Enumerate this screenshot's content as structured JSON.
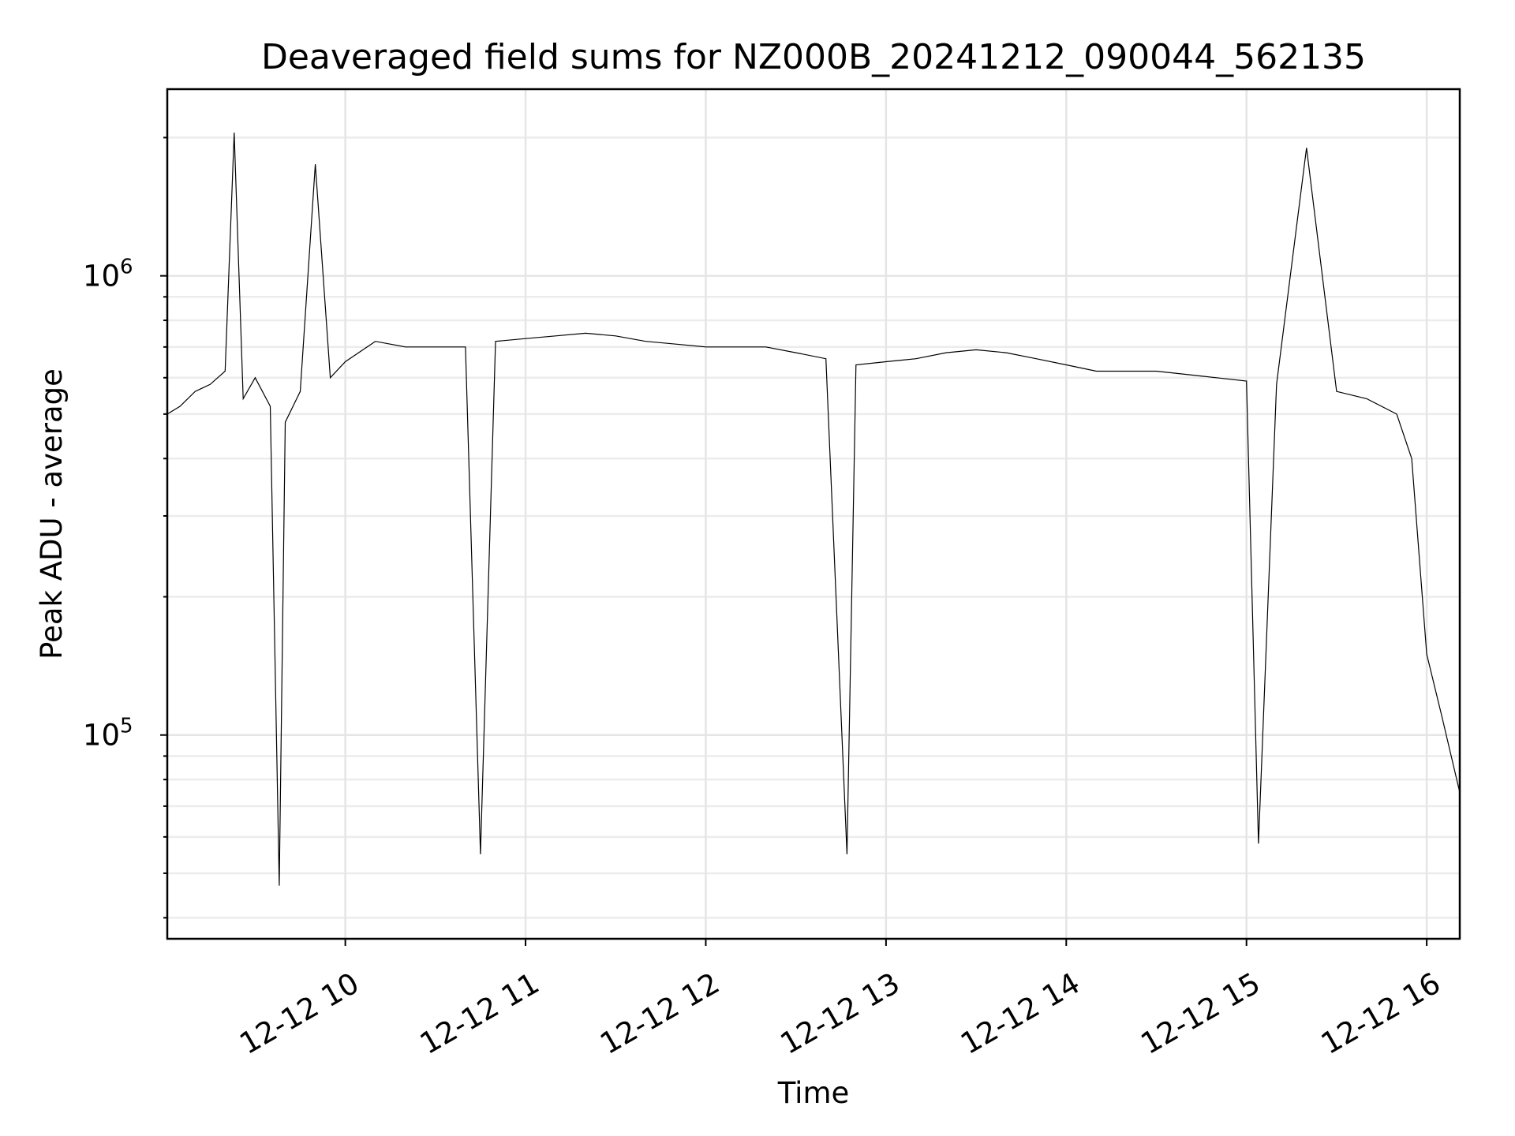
{
  "chart_data": {
    "type": "line",
    "title": "Deaveraged field sums for NZ000B_20241212_090044_562135",
    "xlabel": "Time",
    "ylabel": "Peak ADU - average",
    "yscale": "log",
    "ylim": [
      36000,
      2550000
    ],
    "y_major_ticks": [
      {
        "value": 100000,
        "base": "10",
        "exp": "5"
      },
      {
        "value": 1000000,
        "base": "10",
        "exp": "6"
      }
    ],
    "y_minor_ticks": [
      40000,
      50000,
      60000,
      70000,
      80000,
      90000,
      200000,
      300000,
      400000,
      500000,
      600000,
      700000,
      800000,
      900000,
      2000000
    ],
    "xlim": [
      "2024-12-12T09:00:44",
      "2024-12-12T16:11:00"
    ],
    "x_ticks": [
      {
        "time": "2024-12-12T10:00:00",
        "label": "12-12 10"
      },
      {
        "time": "2024-12-12T11:00:00",
        "label": "12-12 11"
      },
      {
        "time": "2024-12-12T12:00:00",
        "label": "12-12 12"
      },
      {
        "time": "2024-12-12T13:00:00",
        "label": "12-12 13"
      },
      {
        "time": "2024-12-12T14:00:00",
        "label": "12-12 14"
      },
      {
        "time": "2024-12-12T15:00:00",
        "label": "12-12 15"
      },
      {
        "time": "2024-12-12T16:00:00",
        "label": "12-12 16"
      }
    ],
    "grid": true,
    "series": [
      {
        "color": "#000000",
        "points": [
          [
            "2024-12-12T09:00:44",
            500000
          ],
          [
            "2024-12-12T09:05:00",
            520000
          ],
          [
            "2024-12-12T09:10:00",
            560000
          ],
          [
            "2024-12-12T09:15:00",
            580000
          ],
          [
            "2024-12-12T09:20:00",
            620000
          ],
          [
            "2024-12-12T09:23:00",
            2050000
          ],
          [
            "2024-12-12T09:26:00",
            540000
          ],
          [
            "2024-12-12T09:30:00",
            600000
          ],
          [
            "2024-12-12T09:35:00",
            520000
          ],
          [
            "2024-12-12T09:38:00",
            47000
          ],
          [
            "2024-12-12T09:40:00",
            480000
          ],
          [
            "2024-12-12T09:45:00",
            560000
          ],
          [
            "2024-12-12T09:50:00",
            1750000
          ],
          [
            "2024-12-12T09:55:00",
            600000
          ],
          [
            "2024-12-12T10:00:00",
            650000
          ],
          [
            "2024-12-12T10:10:00",
            720000
          ],
          [
            "2024-12-12T10:20:00",
            700000
          ],
          [
            "2024-12-12T10:30:00",
            700000
          ],
          [
            "2024-12-12T10:40:00",
            700000
          ],
          [
            "2024-12-12T10:45:00",
            55000
          ],
          [
            "2024-12-12T10:50:00",
            720000
          ],
          [
            "2024-12-12T11:00:00",
            730000
          ],
          [
            "2024-12-12T11:10:00",
            740000
          ],
          [
            "2024-12-12T11:20:00",
            750000
          ],
          [
            "2024-12-12T11:30:00",
            740000
          ],
          [
            "2024-12-12T11:40:00",
            720000
          ],
          [
            "2024-12-12T11:50:00",
            710000
          ],
          [
            "2024-12-12T12:00:00",
            700000
          ],
          [
            "2024-12-12T12:10:00",
            700000
          ],
          [
            "2024-12-12T12:20:00",
            700000
          ],
          [
            "2024-12-12T12:30:00",
            680000
          ],
          [
            "2024-12-12T12:40:00",
            660000
          ],
          [
            "2024-12-12T12:47:00",
            55000
          ],
          [
            "2024-12-12T12:50:00",
            640000
          ],
          [
            "2024-12-12T13:00:00",
            650000
          ],
          [
            "2024-12-12T13:10:00",
            660000
          ],
          [
            "2024-12-12T13:20:00",
            680000
          ],
          [
            "2024-12-12T13:30:00",
            690000
          ],
          [
            "2024-12-12T13:40:00",
            680000
          ],
          [
            "2024-12-12T13:50:00",
            660000
          ],
          [
            "2024-12-12T14:00:00",
            640000
          ],
          [
            "2024-12-12T14:10:00",
            620000
          ],
          [
            "2024-12-12T14:20:00",
            620000
          ],
          [
            "2024-12-12T14:30:00",
            620000
          ],
          [
            "2024-12-12T14:40:00",
            610000
          ],
          [
            "2024-12-12T14:50:00",
            600000
          ],
          [
            "2024-12-12T15:00:00",
            590000
          ],
          [
            "2024-12-12T15:04:00",
            58000
          ],
          [
            "2024-12-12T15:10:00",
            580000
          ],
          [
            "2024-12-12T15:20:00",
            1900000
          ],
          [
            "2024-12-12T15:30:00",
            560000
          ],
          [
            "2024-12-12T15:40:00",
            540000
          ],
          [
            "2024-12-12T15:50:00",
            500000
          ],
          [
            "2024-12-12T15:55:00",
            400000
          ],
          [
            "2024-12-12T16:00:00",
            150000
          ],
          [
            "2024-12-12T16:05:00",
            110000
          ],
          [
            "2024-12-12T16:11:00",
            75000
          ]
        ]
      }
    ]
  }
}
